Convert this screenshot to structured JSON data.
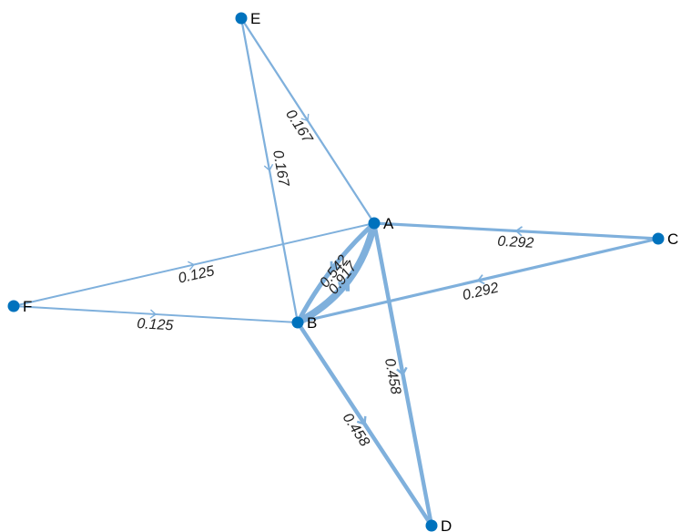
{
  "graph": {
    "node_color": "#0072BD",
    "edge_color": "#7FB0DC",
    "nodes": [
      {
        "id": "A",
        "label": "A"
      },
      {
        "id": "B",
        "label": "B"
      },
      {
        "id": "C",
        "label": "C"
      },
      {
        "id": "D",
        "label": "D"
      },
      {
        "id": "E",
        "label": "E"
      },
      {
        "id": "F",
        "label": "F"
      }
    ],
    "edges": [
      {
        "source": "E",
        "target": "A",
        "weight": 0.167,
        "label": "0.167"
      },
      {
        "source": "E",
        "target": "B",
        "weight": 0.167,
        "label": "0.167"
      },
      {
        "source": "F",
        "target": "A",
        "weight": 0.125,
        "label": "0.125"
      },
      {
        "source": "F",
        "target": "B",
        "weight": 0.125,
        "label": "0.125"
      },
      {
        "source": "C",
        "target": "A",
        "weight": 0.292,
        "label": "0.292"
      },
      {
        "source": "C",
        "target": "B",
        "weight": 0.292,
        "label": "0.292"
      },
      {
        "source": "B",
        "target": "A",
        "weight": 0.917,
        "label": "0.917"
      },
      {
        "source": "A",
        "target": "B",
        "weight": 0.542,
        "label": "0.542"
      },
      {
        "source": "A",
        "target": "D",
        "weight": 0.458,
        "label": "0.458"
      },
      {
        "source": "B",
        "target": "D",
        "weight": 0.458,
        "label": "0.458"
      }
    ]
  }
}
